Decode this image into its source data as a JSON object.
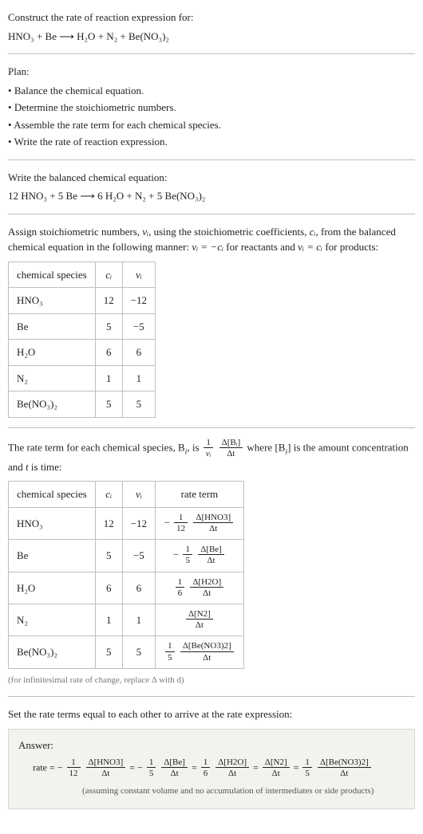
{
  "colors": {
    "text": "#222222",
    "border": "#bfbfbf",
    "answerBg": "#f2f2ee",
    "answerBorder": "#d8d8d0",
    "note": "#777777"
  },
  "intro": {
    "prompt": "Construct the rate of reaction expression for:",
    "equation": "HNO₃ + Be  ⟶  H₂O + N₂ + Be(NO₃)₂"
  },
  "plan": {
    "title": "Plan:",
    "items": [
      "Balance the chemical equation.",
      "Determine the stoichiometric numbers.",
      "Assemble the rate term for each chemical species.",
      "Write the rate of reaction expression."
    ]
  },
  "balanced": {
    "title": "Write the balanced chemical equation:",
    "equation": "12 HNO₃ + 5 Be  ⟶  6 H₂O + N₂ + 5 Be(NO₃)₂"
  },
  "stoich_text": {
    "part1": "Assign stoichiometric numbers, ",
    "nu_i": "νᵢ",
    "part2": ", using the stoichiometric coefficients, ",
    "c_i": "cᵢ",
    "part3": ", from the balanced chemical equation in the following manner: ",
    "eq1": "νᵢ = −cᵢ",
    "part4": " for reactants and ",
    "eq2": "νᵢ = cᵢ",
    "part5": " for products:"
  },
  "table1": {
    "headers": [
      "chemical species",
      "cᵢ",
      "νᵢ"
    ],
    "rows": [
      [
        "HNO₃",
        "12",
        "−12"
      ],
      [
        "Be",
        "5",
        "−5"
      ],
      [
        "H₂O",
        "6",
        "6"
      ],
      [
        "N₂",
        "1",
        "1"
      ],
      [
        "Be(NO₃)₂",
        "5",
        "5"
      ]
    ],
    "col_align": [
      "left",
      "center",
      "center"
    ]
  },
  "rate_term_text": {
    "t1": "The rate term for each chemical species, B",
    "i": "i",
    "t2": ", is ",
    "frac1_num": "1",
    "frac1_den": "νᵢ",
    "frac2_num": "Δ[Bᵢ]",
    "frac2_den": "Δt",
    "t3": " where [B",
    "t4": "] is the amount concentration and ",
    "t_it": "t",
    "t5": " is time:"
  },
  "table2": {
    "headers": [
      "chemical species",
      "cᵢ",
      "νᵢ",
      "rate term"
    ],
    "rows": [
      {
        "sp": "HNO₃",
        "c": "12",
        "nu": "−12",
        "neg": "−",
        "num1": "1",
        "den1": "12",
        "num2": "Δ[HNO3]",
        "den2": "Δt"
      },
      {
        "sp": "Be",
        "c": "5",
        "nu": "−5",
        "neg": "−",
        "num1": "1",
        "den1": "5",
        "num2": "Δ[Be]",
        "den2": "Δt"
      },
      {
        "sp": "H₂O",
        "c": "6",
        "nu": "6",
        "neg": "",
        "num1": "1",
        "den1": "6",
        "num2": "Δ[H2O]",
        "den2": "Δt"
      },
      {
        "sp": "N₂",
        "c": "1",
        "nu": "1",
        "neg": "",
        "num1": "",
        "den1": "",
        "num2": "Δ[N2]",
        "den2": "Δt"
      },
      {
        "sp": "Be(NO₃)₂",
        "c": "5",
        "nu": "5",
        "neg": "",
        "num1": "1",
        "den1": "5",
        "num2": "Δ[Be(NO3)2]",
        "den2": "Δt"
      }
    ]
  },
  "note": "(for infinitesimal rate of change, replace Δ with d)",
  "final_line": "Set the rate terms equal to each other to arrive at the rate expression:",
  "answer": {
    "title": "Answer:",
    "terms": [
      {
        "lead": "rate = −",
        "num1": "1",
        "den1": "12",
        "num2": "Δ[HNO3]",
        "den2": "Δt"
      },
      {
        "lead": " = −",
        "num1": "1",
        "den1": "5",
        "num2": "Δ[Be]",
        "den2": "Δt"
      },
      {
        "lead": " = ",
        "num1": "1",
        "den1": "6",
        "num2": "Δ[H2O]",
        "den2": "Δt"
      },
      {
        "lead": " = ",
        "num1": "",
        "den1": "",
        "num2": "Δ[N2]",
        "den2": "Δt"
      },
      {
        "lead": " = ",
        "num1": "1",
        "den1": "5",
        "num2": "Δ[Be(NO3)2]",
        "den2": "Δt"
      }
    ],
    "note": "(assuming constant volume and no accumulation of intermediates or side products)"
  }
}
